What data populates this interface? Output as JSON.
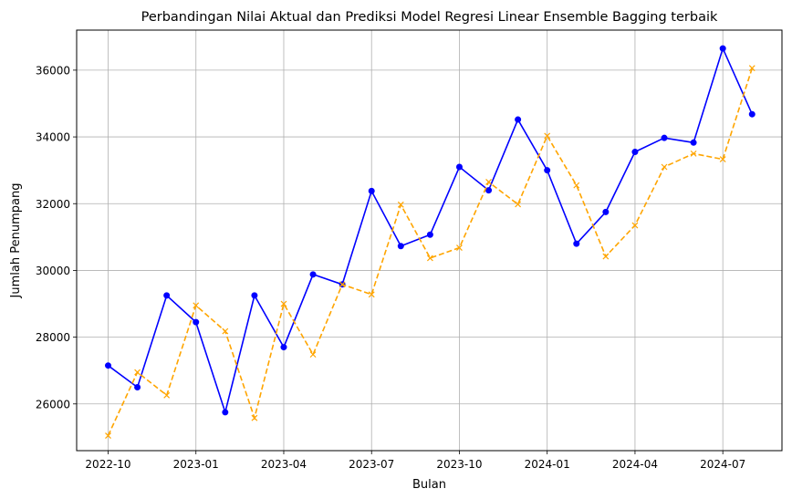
{
  "chart_data": {
    "type": "line",
    "title": "Perbandingan Nilai Aktual dan Prediksi Model Regresi Linear Ensemble Bagging terbaik",
    "xlabel": "Bulan",
    "ylabel": "Jumlah Penumpang",
    "x": [
      "2022-10",
      "2022-11",
      "2022-12",
      "2023-01",
      "2023-02",
      "2023-03",
      "2023-04",
      "2023-05",
      "2023-06",
      "2023-07",
      "2023-08",
      "2023-09",
      "2023-10",
      "2023-11",
      "2023-12",
      "2024-01",
      "2024-02",
      "2024-03",
      "2024-04",
      "2024-05",
      "2024-06",
      "2024-07",
      "2024-08"
    ],
    "xticks": [
      "2022-10",
      "2023-01",
      "2023-04",
      "2023-07",
      "2023-10",
      "2024-01",
      "2024-04",
      "2024-07"
    ],
    "yticks": [
      26000,
      28000,
      30000,
      32000,
      34000,
      36000
    ],
    "ylim": [
      24600,
      37200
    ],
    "grid": true,
    "series": [
      {
        "color": "#0000ff",
        "line_style": "solid",
        "marker": "circle",
        "values": [
          27150,
          26500,
          29250,
          28450,
          25750,
          29250,
          27700,
          29880,
          29580,
          32380,
          30730,
          31070,
          33100,
          32400,
          34520,
          33000,
          30800,
          31750,
          33550,
          33970,
          33830,
          36650,
          34680
        ]
      },
      {
        "color": "#ffa500",
        "line_style": "dashed",
        "marker": "x",
        "values": [
          25050,
          26950,
          26260,
          28950,
          28180,
          25580,
          29000,
          27480,
          29580,
          29280,
          31970,
          30370,
          30680,
          32650,
          31980,
          34030,
          32550,
          30420,
          31350,
          33100,
          33500,
          33330,
          36060
        ]
      }
    ]
  }
}
